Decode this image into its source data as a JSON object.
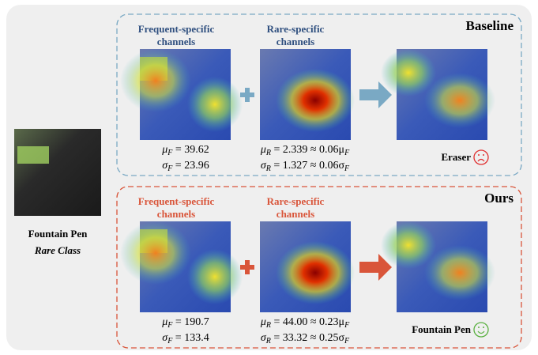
{
  "input": {
    "label": "Fountain Pen",
    "sublabel": "Rare Class"
  },
  "panels": [
    {
      "title": "Baseline",
      "color": "#2f4f7f",
      "accent": "#7aa9c4",
      "columns": [
        {
          "heading": [
            "Frequent-specific",
            "channels"
          ],
          "stats": [
            [
              "μ",
              "F",
              " = 39.62"
            ],
            [
              "σ",
              "F",
              " = 23.96"
            ]
          ]
        },
        {
          "heading": [
            "Rare-specific",
            "channels"
          ],
          "stats": [
            [
              "μ",
              "R",
              " = 2.339 ≈ 0.06μ",
              "F"
            ],
            [
              "σ",
              "R",
              " = 1.327 ≈ 0.06σ",
              "F"
            ]
          ]
        }
      ],
      "result": "Eraser"
    },
    {
      "title": "Ours",
      "color": "#d9553a",
      "accent": "#d9553a",
      "columns": [
        {
          "heading": [
            "Frequent-specific",
            "channels"
          ],
          "stats": [
            [
              "μ",
              "F",
              " = 190.7"
            ],
            [
              "σ",
              "F",
              " = 133.4"
            ]
          ]
        },
        {
          "heading": [
            "Rare-specific",
            "channels"
          ],
          "stats": [
            [
              "μ",
              "R",
              " = 44.00 ≈ 0.23μ",
              "F"
            ],
            [
              "σ",
              "R",
              " = 33.32 ≈ 0.25σ",
              "F"
            ]
          ]
        }
      ],
      "result": "Fountain Pen"
    }
  ]
}
